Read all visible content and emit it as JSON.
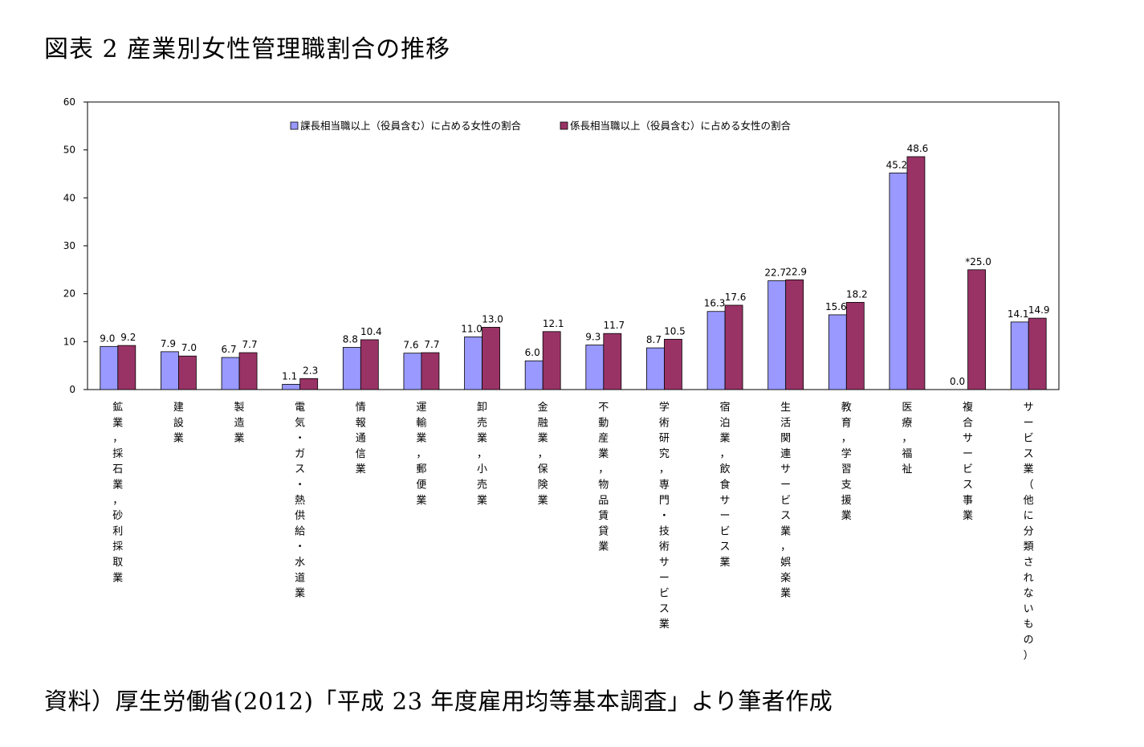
{
  "title": "図表 2  産業別女性管理職割合の推移",
  "source": "資料）厚生労働省(2012)「平成 23 年度雇用均等基本調査」より筆者作成",
  "colors": {
    "series1": "#9999ff",
    "series2": "#993366"
  },
  "chart_data": {
    "type": "bar",
    "ylim": [
      0,
      60
    ],
    "yticks": [
      0,
      10,
      20,
      30,
      40,
      50,
      60
    ],
    "grid": false,
    "legend_position": "top-center",
    "categories": [
      "鉱業，採石業，砂利採取業",
      "建設業",
      "製造業",
      "電気・ガス・熱供給・水道業",
      "情報通信業",
      "運輸業，郵便業",
      "卸売業，小売業",
      "金融業，保険業",
      "不動産業，物品賃貸業",
      "学術研究，専門・技術サービス業",
      "宿泊業，飲食サービス業",
      "生活関連サービス業，娯楽業",
      "教育，学習支援業",
      "医療，福祉",
      "複合サービス事業",
      "サービス業（他に分類されないもの）"
    ],
    "series": [
      {
        "name": "課長相当職以上（役員含む）に占める女性の割合",
        "values": [
          9.0,
          7.9,
          6.7,
          1.1,
          8.8,
          7.6,
          11.0,
          6.0,
          9.3,
          8.7,
          16.3,
          22.7,
          15.6,
          45.2,
          0.0,
          14.1
        ],
        "labels": [
          "9.0",
          "7.9",
          "6.7",
          "1.1",
          "8.8",
          "7.6",
          "11.0",
          "6.0",
          "9.3",
          "8.7",
          "16.3",
          "22.7",
          "15.6",
          "45.2",
          "0.0",
          "14.1"
        ]
      },
      {
        "name": "係長相当職以上（役員含む）に占める女性の割合",
        "values": [
          9.2,
          7.0,
          7.7,
          2.3,
          10.4,
          7.7,
          13.0,
          12.1,
          11.7,
          10.5,
          17.6,
          22.9,
          18.2,
          48.6,
          25.0,
          14.9
        ],
        "labels": [
          "9.2",
          "7.0",
          "7.7",
          "2.3",
          "10.4",
          "7.7",
          "13.0",
          "12.1",
          "11.7",
          "10.5",
          "17.6",
          "22.9",
          "18.2",
          "48.6",
          "*25.0",
          "14.9"
        ]
      }
    ]
  }
}
